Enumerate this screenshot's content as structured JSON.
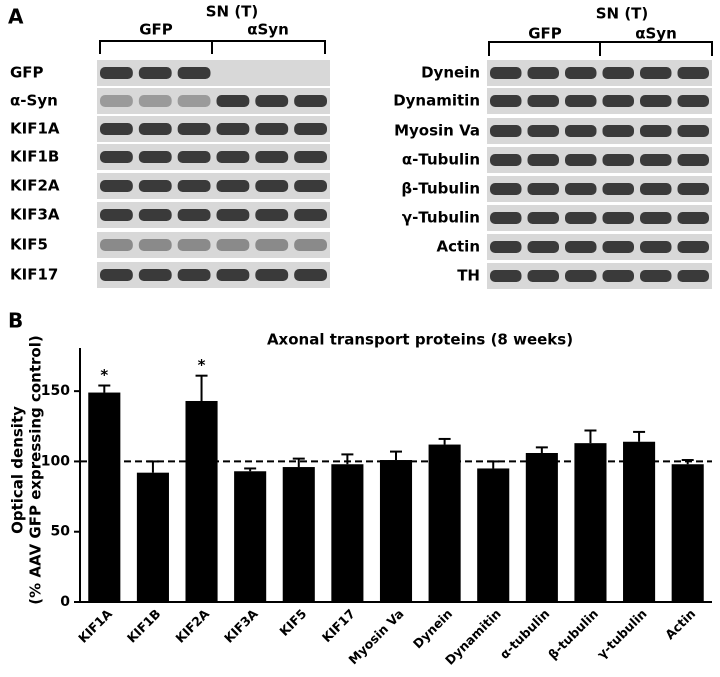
{
  "panel_a": {
    "label": "A",
    "left": {
      "header": "SN (T)",
      "groups": [
        "GFP",
        "αSyn"
      ],
      "rows": [
        "GFP",
        "α-Syn",
        "KIF1A",
        "KIF1B",
        "KIF2A",
        "KIF3A",
        "KIF5",
        "KIF17"
      ]
    },
    "right": {
      "header": "SN (T)",
      "groups": [
        "GFP",
        "αSyn"
      ],
      "rows": [
        "Dynein",
        "Dynamitin",
        "Myosin Va",
        "α-Tubulin",
        "β-Tubulin",
        "γ-Tubulin",
        "Actin",
        "TH"
      ]
    }
  },
  "panel_b": {
    "label": "B"
  },
  "chart_data": {
    "type": "bar",
    "title": "Axonal transport proteins (8 weeks)",
    "ylabel": [
      "Optical density",
      "(% AAV GFP expressing control)"
    ],
    "categories": [
      "KIF1A",
      "KIF1B",
      "KIF2A",
      "KIF3A",
      "KIF5",
      "KIF17",
      "Myosin Va",
      "Dynein",
      "Dynamitin",
      "α-tubulin",
      "β-tubulin",
      "γ-tubulin",
      "Actin"
    ],
    "values": [
      149,
      92,
      143,
      93,
      96,
      98,
      101,
      112,
      95,
      106,
      113,
      114,
      98
    ],
    "errors": [
      5,
      8,
      18,
      2,
      6,
      7,
      6,
      4,
      5,
      4,
      9,
      7,
      3
    ],
    "significance": [
      "*",
      null,
      "*",
      null,
      null,
      null,
      null,
      null,
      null,
      null,
      null,
      null,
      null
    ],
    "color": "#000000",
    "ylim": [
      0,
      175
    ],
    "yticks": [
      0,
      50,
      100,
      150
    ],
    "reference_line": 100
  }
}
